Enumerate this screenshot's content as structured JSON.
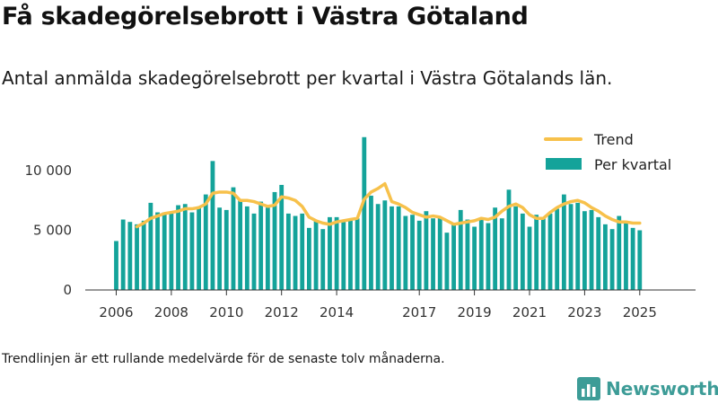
{
  "title": "Få skadegörelsebrott i Västra Götaland",
  "subtitle": "Antal anmälda skadegörelsebrott per kvartal i Västra Götalands län.",
  "footnote": "Trendlinjen är ett rullande medelvärde för de senaste tolv månaderna.",
  "brand": {
    "name": "Newsworthy"
  },
  "colors": {
    "bars": "#14a39a",
    "trend": "#f7c14b",
    "axis": "#333333",
    "grid": "#d9d9d9"
  },
  "chart_data": {
    "type": "bar",
    "title": "Få skadegörelsebrott i Västra Götaland",
    "xlabel": "",
    "ylabel": "",
    "ylim": [
      0,
      13000
    ],
    "yticks": [
      0,
      5000,
      10000
    ],
    "ytick_labels": [
      "0",
      "5 000",
      "10 000"
    ],
    "xticks": [
      2006,
      2008,
      2010,
      2012,
      2014,
      2017,
      2019,
      2021,
      2023,
      2025
    ],
    "x_start": "2006-Q1",
    "grid": false,
    "legend_position": "top-right",
    "series": [
      {
        "name": "Per kvartal",
        "type": "bar",
        "values": [
          4100,
          5900,
          5700,
          5500,
          5800,
          7300,
          6500,
          6500,
          6500,
          7100,
          7200,
          6500,
          7000,
          8000,
          10800,
          6900,
          6700,
          8600,
          7500,
          7000,
          6400,
          7400,
          6900,
          8200,
          8800,
          6400,
          6200,
          6400,
          5200,
          5800,
          5100,
          6100,
          6100,
          5700,
          5900,
          6000,
          12800,
          7900,
          7200,
          7500,
          7000,
          7000,
          6200,
          6300,
          5800,
          6600,
          6000,
          6100,
          4800,
          5600,
          6700,
          5900,
          5300,
          6000,
          5600,
          6900,
          6000,
          8400,
          7000,
          6400,
          5300,
          6300,
          6000,
          6400,
          6800,
          8000,
          7200,
          7300,
          6600,
          6700,
          6100,
          5500,
          5100,
          6200,
          5700,
          5200,
          5000
        ]
      },
      {
        "name": "Trend",
        "type": "line",
        "values": [
          null,
          null,
          null,
          5300,
          5600,
          6000,
          6200,
          6400,
          6500,
          6600,
          6800,
          6800,
          6900,
          7200,
          8100,
          8200,
          8200,
          8100,
          7500,
          7500,
          7400,
          7200,
          7000,
          7100,
          7800,
          7700,
          7500,
          7000,
          6100,
          5800,
          5600,
          5500,
          5700,
          5800,
          5900,
          6000,
          7600,
          8200,
          8500,
          8900,
          7400,
          7200,
          6900,
          6500,
          6300,
          6100,
          6200,
          6100,
          5800,
          5500,
          5600,
          5700,
          5800,
          6000,
          5900,
          6100,
          6600,
          7000,
          7200,
          6900,
          6300,
          6000,
          6000,
          6500,
          6900,
          7200,
          7400,
          7500,
          7300,
          6900,
          6600,
          6200,
          5900,
          5700,
          5700,
          5600,
          5600
        ]
      }
    ]
  }
}
